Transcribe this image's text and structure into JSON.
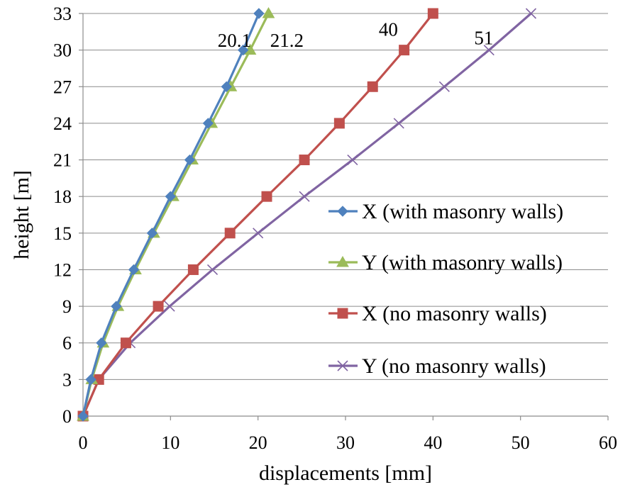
{
  "chart_data": {
    "type": "line",
    "title": "",
    "xlabel": "displacements [mm]",
    "ylabel": "height [m]",
    "xlim": [
      0,
      60
    ],
    "ylim": [
      0,
      33
    ],
    "xticks": [
      0,
      10,
      20,
      30,
      40,
      50,
      60
    ],
    "yticks": [
      0,
      3,
      6,
      9,
      12,
      15,
      18,
      21,
      24,
      27,
      30,
      33
    ],
    "grid": "horizontal",
    "legend_position": "right",
    "series": [
      {
        "name": "X (with masonry walls)",
        "color": "#4f81bd",
        "marker": "diamond",
        "x": [
          0,
          0.9,
          2.1,
          3.8,
          5.8,
          7.9,
          10.0,
          12.2,
          14.3,
          16.4,
          18.3,
          20.1
        ],
        "y": [
          0,
          3,
          6,
          9,
          12,
          15,
          18,
          21,
          24,
          27,
          30,
          33
        ]
      },
      {
        "name": "Y (with masonry walls)",
        "color": "#9bbb59",
        "marker": "triangle",
        "x": [
          0,
          1.0,
          2.3,
          4.0,
          6.0,
          8.1,
          10.3,
          12.5,
          14.7,
          16.9,
          19.1,
          21.2
        ],
        "y": [
          0,
          3,
          6,
          9,
          12,
          15,
          18,
          21,
          24,
          27,
          30,
          33
        ]
      },
      {
        "name": "X (no masonry walls)",
        "color": "#c0504d",
        "marker": "square",
        "x": [
          0,
          1.8,
          4.9,
          8.6,
          12.6,
          16.8,
          21.0,
          25.3,
          29.3,
          33.1,
          36.7,
          40.0
        ],
        "y": [
          0,
          3,
          6,
          9,
          12,
          15,
          18,
          21,
          24,
          27,
          30,
          33
        ]
      },
      {
        "name": "Y (no masonry walls)",
        "color": "#8064a2",
        "marker": "x",
        "x": [
          0,
          1.8,
          5.4,
          9.9,
          14.8,
          20.0,
          25.3,
          30.8,
          36.1,
          41.3,
          46.4,
          51.2
        ],
        "y": [
          0,
          3,
          6,
          9,
          12,
          15,
          18,
          21,
          24,
          27,
          30,
          33
        ]
      }
    ],
    "annotations": [
      {
        "text": "20.1",
        "x": 17.3,
        "y": 30.8
      },
      {
        "text": "21.2",
        "x": 23.3,
        "y": 30.8
      },
      {
        "text": "40",
        "x": 34.9,
        "y": 31.7
      },
      {
        "text": "51",
        "x": 45.8,
        "y": 31.0
      }
    ]
  }
}
